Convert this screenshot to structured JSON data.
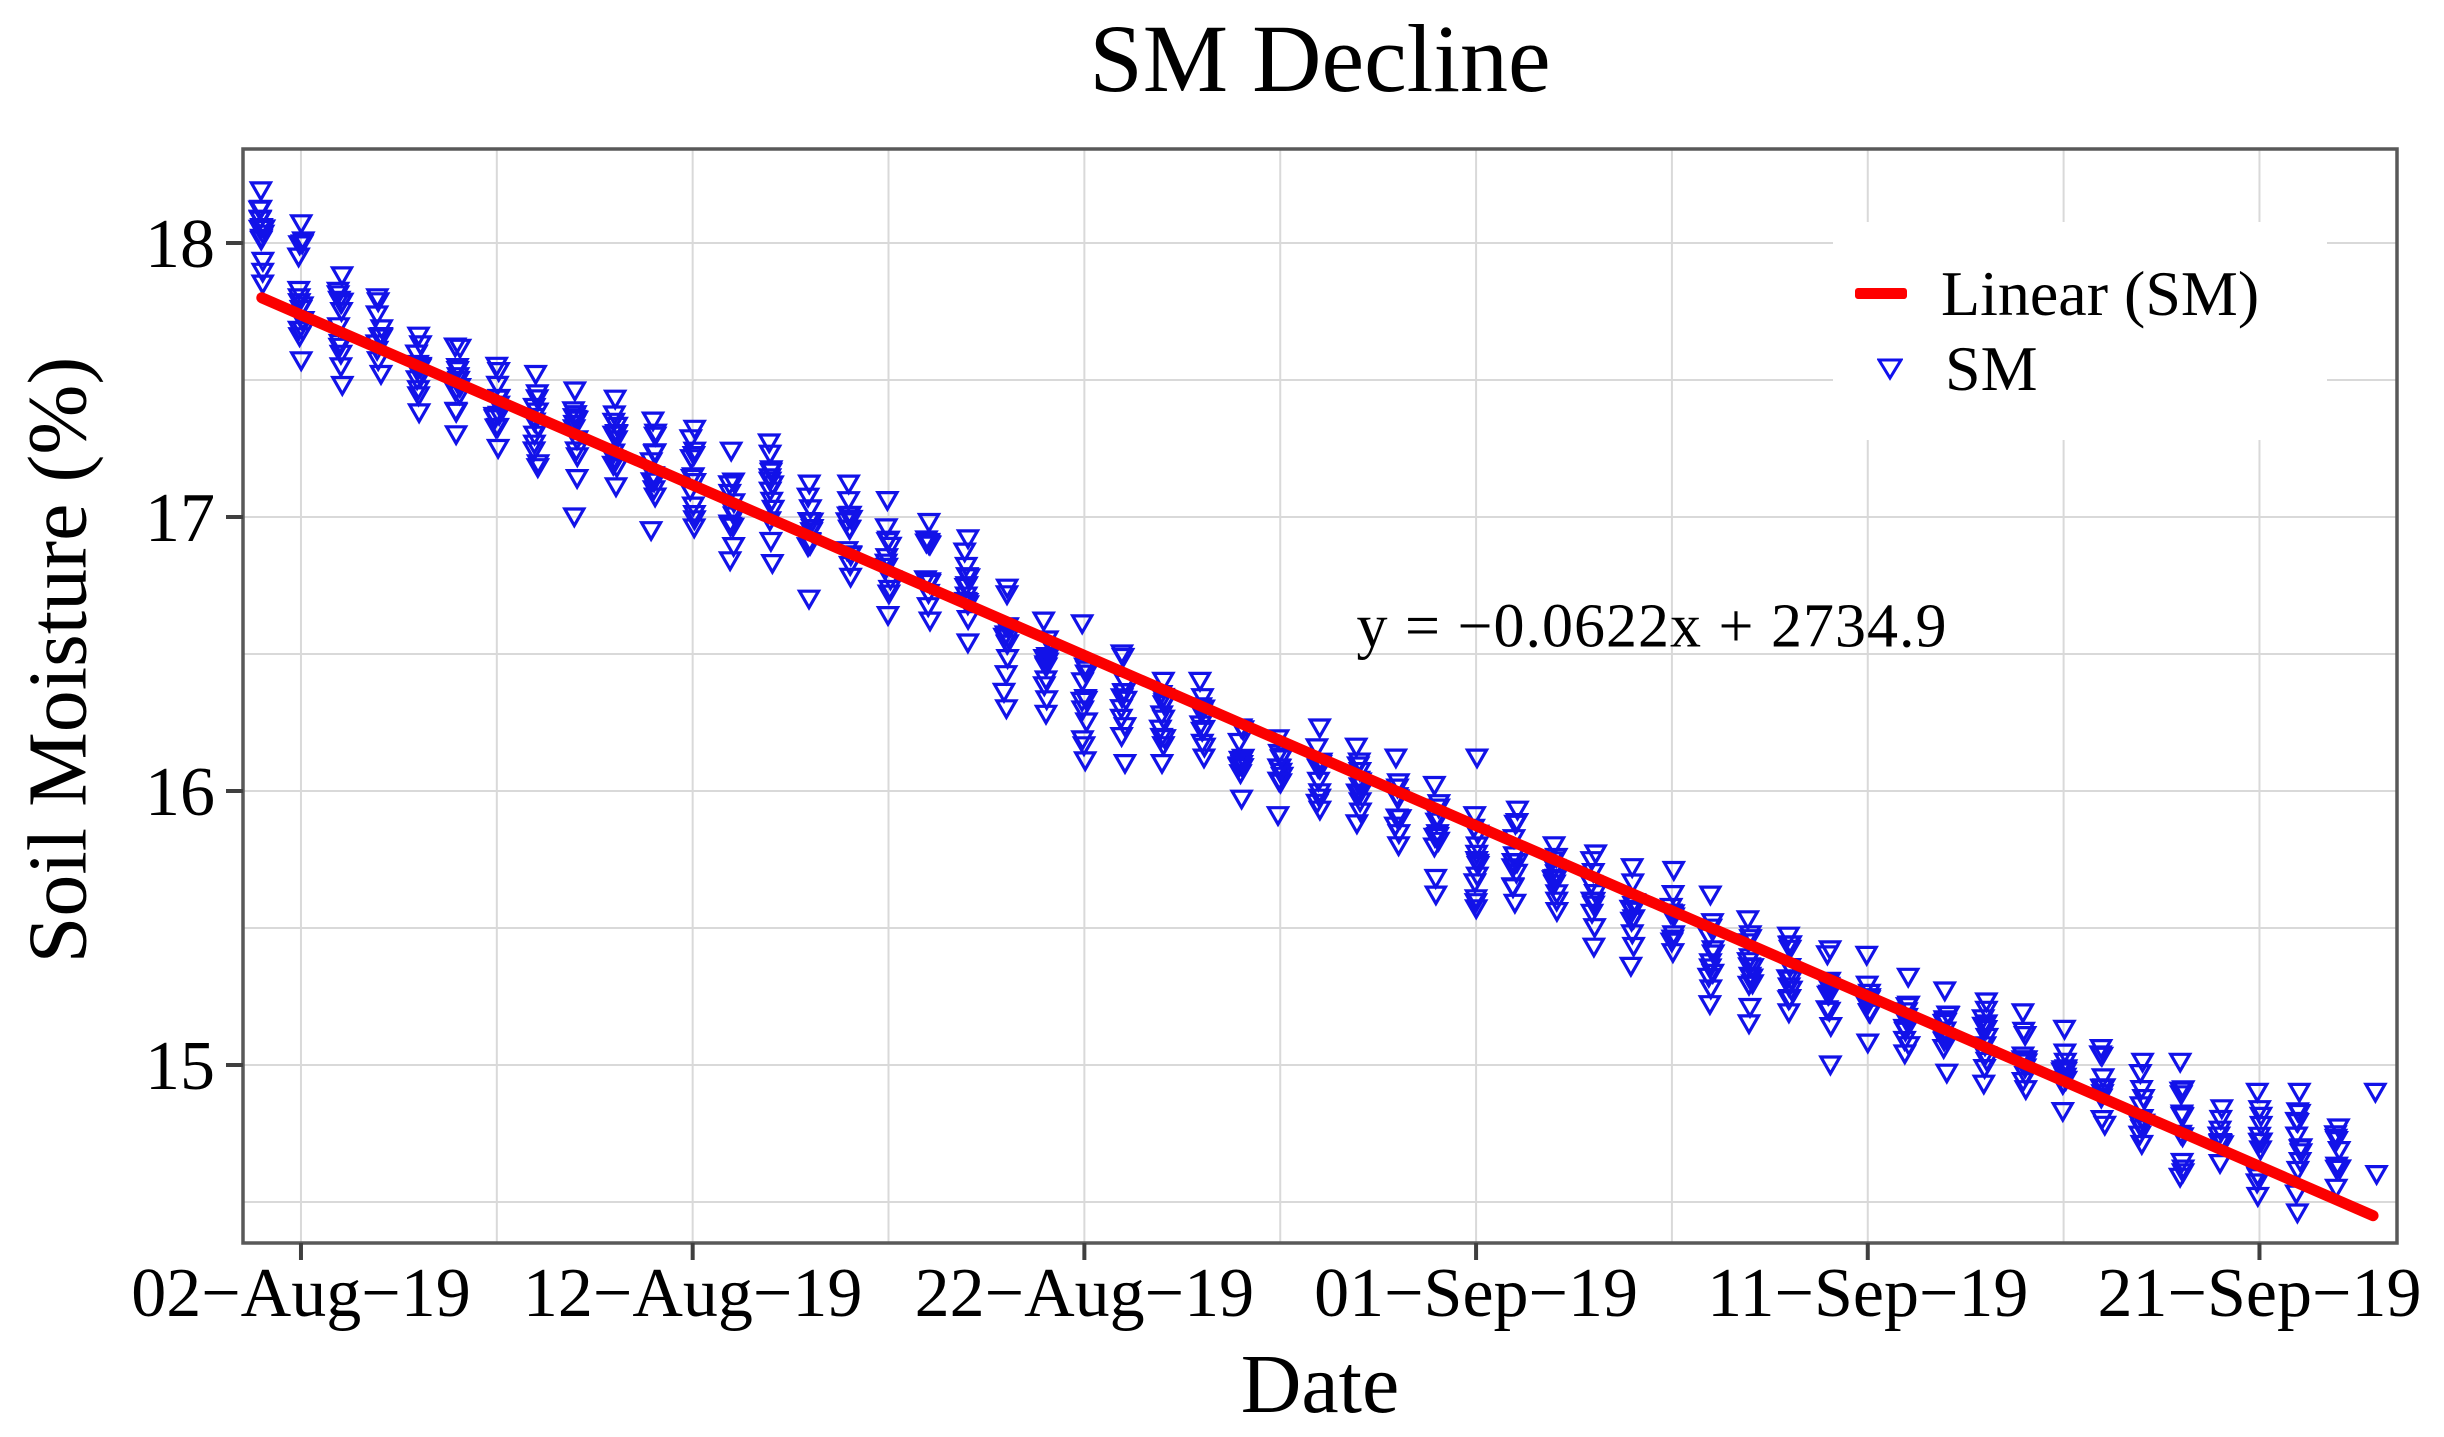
{
  "chart_data": {
    "type": "scatter",
    "title": "SM Decline",
    "xlabel": "Date",
    "ylabel": "Soil Moisture (%)",
    "equation": "y = −0.0622x + 2734.9",
    "legend": [
      {
        "label": "Linear (SM)",
        "marker": "red-line",
        "color": "#fe0000"
      },
      {
        "label": "SM",
        "marker": "open-triangle-down",
        "color": "#1010ee"
      }
    ],
    "colors": {
      "marker": "#1212e8",
      "trend": "#fb0000",
      "grid": "#d9d9d9",
      "axis_border": "#595959",
      "tick": "#3f3f3f",
      "text": "#000000"
    },
    "grid": {
      "horizontal_step": 0.5,
      "vertical_step_days": 5,
      "on": true
    },
    "ylim": [
      14.35,
      18.34
    ],
    "y_ticks": [
      18,
      17,
      16,
      15
    ],
    "x_ticks": {
      "days": [
        1,
        11,
        21,
        31,
        41,
        51
      ],
      "labels": [
        "02−Aug−19",
        "12−Aug−19",
        "22−Aug−19",
        "01−Sep−19",
        "11−Sep−19",
        "21−Sep−19"
      ]
    },
    "x_gridline_days": [
      1,
      6,
      11,
      16,
      21,
      26,
      31,
      36,
      41,
      46,
      51
    ],
    "trend": {
      "name": "Linear (SM)",
      "slope_per_day": -0.0622,
      "intercept_label": 2734.9,
      "start_day": 0.0,
      "start_value": 17.8,
      "end_day": 53.9,
      "end_value": 14.45
    },
    "series_name": "SM",
    "daily_columns": [
      "date",
      "count",
      "mean",
      "half_spread",
      "outlier_offsets"
    ],
    "daily": [
      [
        "01-Aug-19",
        15,
        18.02,
        0.17
      ],
      [
        "02-Aug-19",
        16,
        17.82,
        0.25
      ],
      [
        "03-Aug-19",
        13,
        17.68,
        0.2
      ],
      [
        "04-Aug-19",
        11,
        17.66,
        0.14
      ],
      [
        "05-Aug-19",
        12,
        17.52,
        0.14
      ],
      [
        "06-Aug-19",
        12,
        17.46,
        0.16
      ],
      [
        "07-Aug-19",
        12,
        17.4,
        0.15
      ],
      [
        "08-Aug-19",
        13,
        17.35,
        0.17
      ],
      [
        "09-Aug-19",
        12,
        17.3,
        0.16,
        [
          -0.3
        ]
      ],
      [
        "10-Aug-19",
        13,
        17.27,
        0.16
      ],
      [
        "11-Aug-19",
        12,
        17.15,
        0.2
      ],
      [
        "12-Aug-19",
        13,
        17.14,
        0.18
      ],
      [
        "13-Aug-19",
        12,
        17.04,
        0.2
      ],
      [
        "14-Aug-19",
        13,
        17.05,
        0.22
      ],
      [
        "15-Aug-19",
        12,
        16.91,
        0.21
      ],
      [
        "16-Aug-19",
        13,
        16.95,
        0.17
      ],
      [
        "17-Aug-19",
        12,
        16.85,
        0.21
      ],
      [
        "18-Aug-19",
        12,
        16.8,
        0.18
      ],
      [
        "19-Aug-19",
        13,
        16.73,
        0.19
      ],
      [
        "20-Aug-19",
        12,
        16.55,
        0.19,
        [
          -0.25
        ]
      ],
      [
        "21-Aug-19",
        12,
        16.45,
        0.17
      ],
      [
        "22-Aug-19",
        13,
        16.36,
        0.25
      ],
      [
        "23-Aug-19",
        12,
        16.3,
        0.2
      ],
      [
        "24-Aug-19",
        12,
        16.25,
        0.15
      ],
      [
        "25-Aug-19",
        12,
        16.26,
        0.14
      ],
      [
        "26-Aug-19",
        13,
        16.1,
        0.13
      ],
      [
        "27-Aug-19",
        12,
        16.05,
        0.14
      ],
      [
        "28-Aug-19",
        12,
        16.08,
        0.15
      ],
      [
        "29-Aug-19",
        12,
        16.02,
        0.14
      ],
      [
        "30-Aug-19",
        11,
        15.96,
        0.16
      ],
      [
        "31-Aug-19",
        12,
        15.82,
        0.2
      ],
      [
        "01-Sep-19",
        13,
        15.74,
        0.17,
        [
          0.38
        ]
      ],
      [
        "02-Sep-19",
        12,
        15.76,
        0.17
      ],
      [
        "03-Sep-19",
        12,
        15.68,
        0.12
      ],
      [
        "04-Sep-19",
        12,
        15.6,
        0.17
      ],
      [
        "05-Sep-19",
        12,
        15.54,
        0.18
      ],
      [
        "06-Sep-19",
        12,
        15.56,
        0.15
      ],
      [
        "07-Sep-19",
        12,
        15.42,
        0.2
      ],
      [
        "08-Sep-19",
        13,
        15.37,
        0.16,
        [
          -0.22
        ]
      ],
      [
        "09-Sep-19",
        12,
        15.33,
        0.14
      ],
      [
        "10-Sep-19",
        12,
        15.28,
        0.14,
        [
          -0.28
        ]
      ],
      [
        "11-Sep-19",
        12,
        15.24,
        0.16
      ],
      [
        "12-Sep-19",
        12,
        15.18,
        0.14
      ],
      [
        "13-Sep-19",
        12,
        15.12,
        0.15
      ],
      [
        "14-Sep-19",
        12,
        15.08,
        0.15
      ],
      [
        "15-Sep-19",
        12,
        15.05,
        0.14
      ],
      [
        "16-Sep-19",
        12,
        14.98,
        0.15
      ],
      [
        "17-Sep-19",
        12,
        14.92,
        0.14
      ],
      [
        "18-Sep-19",
        12,
        14.86,
        0.15
      ],
      [
        "19-Sep-19",
        13,
        14.8,
        0.21
      ],
      [
        "20-Sep-19",
        9,
        14.74,
        0.1
      ],
      [
        "21-Sep-19",
        12,
        14.71,
        0.19
      ],
      [
        "22-Sep-19",
        13,
        14.68,
        0.22
      ],
      [
        "23-Sep-19",
        10,
        14.66,
        0.11
      ],
      [
        "24-Sep-19",
        2,
        14.75,
        0.15
      ]
    ]
  }
}
